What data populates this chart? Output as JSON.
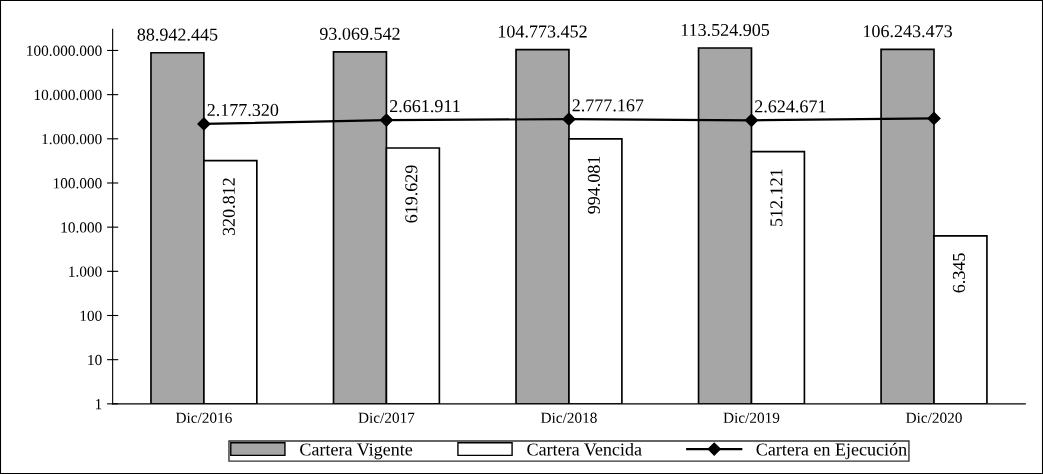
{
  "chart_data": {
    "type": "bar",
    "categories": [
      "Dic/2016",
      "Dic/2017",
      "Dic/2018",
      "Dic/2019",
      "Dic/2020"
    ],
    "series": [
      {
        "name": "Cartera Vigente",
        "color": "#a6a6a6",
        "values": [
          88942445,
          93069542,
          104773452,
          113524905,
          106243473
        ],
        "value_labels": [
          "88.942.445",
          "93.069.542",
          "104.773.452",
          "113.524.905",
          "106.243.473"
        ]
      },
      {
        "name": "Cartera Vencida",
        "color": "#ffffff",
        "values": [
          320812,
          619629,
          994081,
          512121,
          6345
        ],
        "value_labels": [
          "320.812",
          "619.629",
          "994.081",
          "512.121",
          "6.345"
        ]
      },
      {
        "name": "Cartera en Ejecución",
        "type": "line",
        "color": "#000000",
        "marker": "diamond",
        "values": [
          2177320,
          2661911,
          2777167,
          2624671,
          2900000
        ],
        "value_labels": [
          "2.177.320",
          "2.661.911",
          "2.777.167",
          "2.624.671",
          null
        ]
      }
    ],
    "log": true,
    "ylim": [
      1,
      300000000
    ],
    "yticks": [
      {
        "value": 1,
        "label": "1"
      },
      {
        "value": 10,
        "label": "10"
      },
      {
        "value": 100,
        "label": "100"
      },
      {
        "value": 1000,
        "label": "1.000"
      },
      {
        "value": 10000,
        "label": "10.000"
      },
      {
        "value": 100000,
        "label": "100.000"
      },
      {
        "value": 1000000,
        "label": "1.000.000"
      },
      {
        "value": 10000000,
        "label": "10.000.000"
      },
      {
        "value": 100000000,
        "label": "100.000.000"
      }
    ],
    "grid": false,
    "legend": "bottom"
  }
}
